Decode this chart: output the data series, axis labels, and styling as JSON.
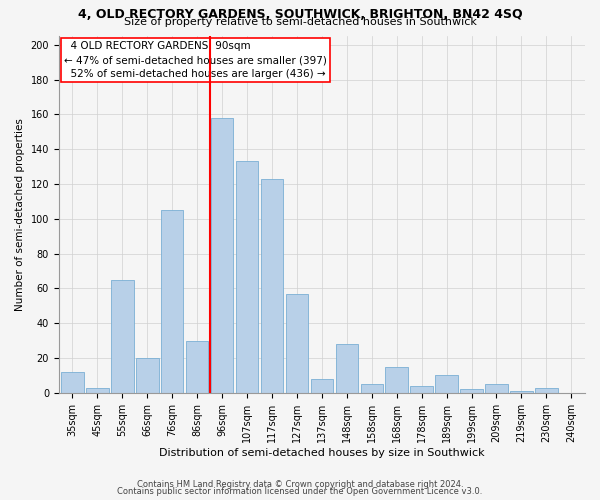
{
  "title": "4, OLD RECTORY GARDENS, SOUTHWICK, BRIGHTON, BN42 4SQ",
  "subtitle": "Size of property relative to semi-detached houses in Southwick",
  "xlabel": "Distribution of semi-detached houses by size in Southwick",
  "ylabel": "Number of semi-detached properties",
  "property_label": "4 OLD RECTORY GARDENS: 90sqm",
  "pct_smaller": 47,
  "count_smaller": 397,
  "pct_larger": 52,
  "count_larger": 436,
  "categories": [
    "35sqm",
    "45sqm",
    "55sqm",
    "66sqm",
    "76sqm",
    "86sqm",
    "96sqm",
    "107sqm",
    "117sqm",
    "127sqm",
    "137sqm",
    "148sqm",
    "158sqm",
    "168sqm",
    "178sqm",
    "189sqm",
    "199sqm",
    "209sqm",
    "219sqm",
    "230sqm",
    "240sqm"
  ],
  "values": [
    12,
    3,
    65,
    20,
    105,
    30,
    158,
    133,
    123,
    57,
    8,
    28,
    5,
    15,
    4,
    10,
    2,
    5,
    1,
    3,
    0
  ],
  "bar_color": "#b8d0e8",
  "bar_edge_color": "#7aafd4",
  "vline_color": "red",
  "vline_pos": 6.0,
  "footer1": "Contains HM Land Registry data © Crown copyright and database right 2024.",
  "footer2": "Contains public sector information licensed under the Open Government Licence v3.0.",
  "ylim": [
    0,
    205
  ],
  "yticks": [
    0,
    20,
    40,
    60,
    80,
    100,
    120,
    140,
    160,
    180,
    200
  ],
  "background_color": "#f5f5f5",
  "grid_color": "#d0d0d0",
  "title_fontsize": 9,
  "subtitle_fontsize": 8,
  "ylabel_fontsize": 7.5,
  "xlabel_fontsize": 8,
  "tick_fontsize": 7,
  "annot_fontsize": 7.5,
  "footer_fontsize": 6
}
